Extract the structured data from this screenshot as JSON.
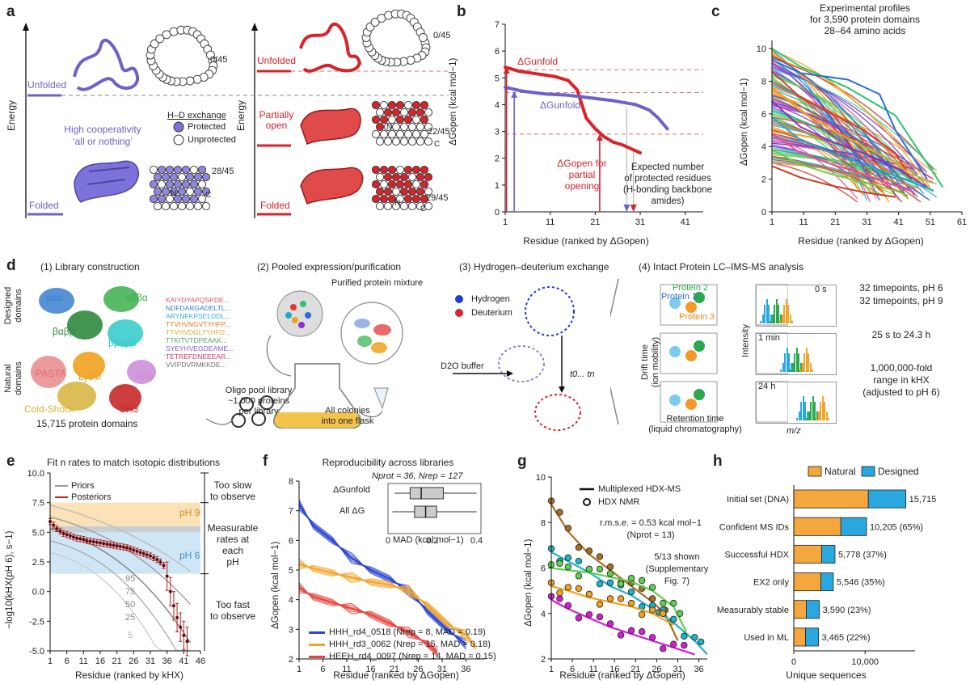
{
  "panel_labels": {
    "a": "a",
    "b": "b",
    "c": "c",
    "d": "d",
    "e": "e",
    "f": "f",
    "g": "g",
    "h": "h"
  },
  "panel_a": {
    "energy_left": "Energy",
    "energy_right": "Energy",
    "unfolded_left": "Unfolded",
    "folded_left": "Folded",
    "unfolded_right": "Unfolded",
    "partially_open": "Partially\nopen",
    "folded_right": "Folded",
    "count_unfolded_left": "0/45",
    "count_folded_left": "28/45",
    "count_unfolded_right": "0/45",
    "count_partial": "22/45",
    "count_folded_right": "29/45",
    "legend_title": "H–D exchange",
    "legend_protected": "Protected",
    "legend_unprotected": "Unprotected",
    "cooperativity": "High cooperativity\n‘all or nothing’",
    "letter_n": "N",
    "letter_c": "C",
    "colors": {
      "blue": "#6b63c9",
      "red": "#d9232a"
    }
  },
  "panel_b": {
    "dg_unfold_red": "ΔGunfold",
    "dg_unfold_blue": "ΔGunfold",
    "dg_open_partial": "ΔGopen for\npartial\nopening",
    "expected": "Expected number\nof protected residues\n(H-bonding backbone\namides)",
    "ylabel": "ΔGopen (kcal mol−1)",
    "xlabel": "Residue (ranked by ΔGopen)"
  },
  "panel_c": {
    "title": "Experimental profiles\nfor 3,590 protein domains\n28–64 amino acids",
    "ylabel": "ΔGopen (kcal mol−1)",
    "xlabel": "Residue (ranked by ΔGopen)"
  },
  "panel_d": {
    "step1": "(1) Library construction",
    "step2": "(2) Pooled expression/purification",
    "step3": "(3) Hydrogen–deuterium exchange",
    "step4": "(4) Intact Protein LC–IMS-MS analysis",
    "designed_domains": "Designed\ndomains",
    "natural_domains": "Natural\ndomains",
    "topologies": [
      "ααα",
      "αββα",
      "βαββ",
      "ββαββ",
      "PASTA",
      "LysM",
      "WW",
      "Cold-Shock",
      "SH3"
    ],
    "sequences": [
      "KAIYDYAPQSPDE...",
      "NDFDARGADELTL...",
      "ARYNFKPSELDDL...",
      "TTVHVNGVTYHFP...",
      "TTVHVDGLTYHFD...",
      "TTKITVTDPEAAK...",
      "SYEYHVEGDEAME...",
      "TETREFDNEEEAR...",
      "VVIPDVRMKKDE..."
    ],
    "sequence_colors": [
      "#e0596a",
      "#3a7ecf",
      "#3cb3d0",
      "#e07f2a",
      "#d6b23a",
      "#4ea86a",
      "#8a5fbf",
      "#c43b6e",
      "#6e6e6e"
    ],
    "domains_count": "15,715 protein domains",
    "oligo": "Oligo pool library\n~1,000 proteins\nper library",
    "colonies": "All colonies\ninto one flask",
    "purified": "Purified protein mixture",
    "hydrogen": "Hydrogen",
    "deuterium": "Deuterium",
    "d2o": "D2O buffer",
    "timepoints_label": "t0... tn",
    "drift": "Drift time\n(ion mobility)",
    "retention": "Retention time\n(liquid chromatography)",
    "protein1": "Protein 1",
    "protein2": "Protein 2",
    "protein3": "Protein 3",
    "intensity": "Intensity",
    "mz": "m/z",
    "time0": "0 s",
    "time1": "1 min",
    "time2": "24 h",
    "tp6": "32 timepoints, pH 6",
    "tp9": "32 timepoints, pH 9",
    "range_time": "25 s to 24.3 h",
    "fold": "1,000,000-fold\nrange in kHX\n(adjusted to pH 6)"
  },
  "panel_e": {
    "title": "Fit n rates to match isotopic distributions",
    "priors": "Priors",
    "posteriors": "Posteriors",
    "ph9": "pH 9",
    "ph6": "pH 6",
    "too_slow": "Too slow\nto observe",
    "measurable": "Measurable\nrates at each\npH",
    "too_fast": "Too fast\nto observe",
    "percentiles": [
      "95",
      "75",
      "50",
      "25",
      "5"
    ],
    "ylabel": "−log10(kHX(pH 6), s−1)",
    "xlabel": "Residue (ranked by kHX)"
  },
  "panel_f": {
    "title": "Reproducibility across libraries",
    "inset_n": "Nprot = 36, Nrep = 127",
    "inset_dg_unfold": "ΔGunfold",
    "inset_all": "All ΔG",
    "inset_xlabel": "MAD (kcal mol−1)",
    "legend": [
      {
        "label": "HHH_rd4_0518 (Nrep = 8, MAD = 0.19)",
        "color": "#2a46d6"
      },
      {
        "label": "HHH_rd3_0062 (Nrep = 15, MAD = 0.18)",
        "color": "#f3a52b"
      },
      {
        "label": "HEEH_rd4_0097 (Nrep = 14, MAD = 0.15)",
        "color": "#e8443f"
      }
    ],
    "ylabel": "ΔGopen (kcal mol−1)",
    "xlabel": "Residue (ranked by ΔGopen)"
  },
  "panel_g": {
    "legend_line": "Multiplexed HDX-MS",
    "legend_circle": "HDX NMR",
    "rmse": "r.m.s.e. = 0.53 kcal mol−1\n(Nprot = 13)",
    "shown": "5/13 shown\n(Supplementary\nFig. 7)",
    "ylabel": "ΔGopen (kcal mol−1)",
    "xlabel": "Residue (ranked by ΔGopen)"
  },
  "chart_data": [
    {
      "type": "line",
      "panel": "b",
      "xlabel": "Residue (ranked by ΔGopen)",
      "ylabel": "ΔGopen (kcal mol−1)",
      "xlim": [
        1,
        45
      ],
      "ylim": [
        0,
        7
      ],
      "xticks": [
        1,
        11,
        21,
        31,
        41
      ],
      "yticks": [
        0,
        1,
        2,
        3,
        4,
        5,
        6,
        7
      ],
      "series": [
        {
          "color": "#d9232a",
          "x": [
            1,
            4,
            8,
            12,
            15,
            17,
            19,
            21,
            23,
            25,
            27,
            29,
            31
          ],
          "y": [
            5.4,
            5.25,
            5.15,
            5.05,
            4.9,
            4.55,
            3.5,
            3.1,
            2.8,
            2.6,
            2.5,
            2.35,
            2.2
          ]
        },
        {
          "color": "#6b63c9",
          "x": [
            1,
            5,
            10,
            15,
            20,
            25,
            30,
            33,
            35,
            37
          ],
          "y": [
            4.65,
            4.5,
            4.4,
            4.35,
            4.25,
            4.15,
            4.0,
            3.8,
            3.5,
            3.1
          ]
        }
      ]
    },
    {
      "type": "line",
      "panel": "c",
      "xlabel": "Residue (ranked by ΔGopen)",
      "ylabel": "ΔGopen (kcal mol−1)",
      "xlim": [
        1,
        61
      ],
      "ylim": [
        0,
        10.5
      ],
      "xticks": [
        1,
        11,
        21,
        31,
        41,
        51,
        61
      ],
      "yticks": [
        0,
        2,
        4,
        6,
        8,
        10
      ],
      "series": [
        {
          "color": "#2ec46b",
          "x": [
            1,
            10,
            25,
            40,
            55
          ],
          "y": [
            10,
            8.9,
            7.6,
            5.9,
            1.5
          ]
        },
        {
          "color": "#2b6fd6",
          "x": [
            1,
            10,
            25,
            35,
            40,
            50
          ],
          "y": [
            9.3,
            8.5,
            8.1,
            7.2,
            5.0,
            2.0
          ]
        },
        {
          "color": "#e3342f",
          "x": [
            1,
            10,
            20,
            30,
            40,
            45
          ],
          "y": [
            8.6,
            7.0,
            6.0,
            5.0,
            3.6,
            2.0
          ]
        },
        {
          "color": "#f0a21f",
          "x": [
            1,
            10,
            20,
            30,
            40,
            48
          ],
          "y": [
            7.6,
            6.2,
            5.0,
            4.0,
            3.0,
            1.8
          ]
        },
        {
          "color": "#8b2fc9",
          "x": [
            1,
            10,
            20,
            30,
            40,
            50
          ],
          "y": [
            6.8,
            5.2,
            4.3,
            3.6,
            2.7,
            1.5
          ]
        },
        {
          "color": "#1fa9c9",
          "x": [
            1,
            10,
            20,
            30,
            40,
            52
          ],
          "y": [
            5.8,
            4.4,
            3.6,
            2.9,
            2.2,
            1.3
          ]
        },
        {
          "color": "#e8509a",
          "x": [
            1,
            10,
            20,
            30,
            40,
            46
          ],
          "y": [
            4.8,
            3.6,
            2.9,
            2.3,
            1.6,
            1.2
          ]
        },
        {
          "color": "#7ac93a",
          "x": [
            1,
            10,
            20,
            30,
            40,
            44
          ],
          "y": [
            3.8,
            2.9,
            2.3,
            1.8,
            1.3,
            1.0
          ]
        },
        {
          "color": "#c43b1e",
          "x": [
            1,
            10,
            20,
            30,
            40
          ],
          "y": [
            2.8,
            2.1,
            1.6,
            1.2,
            0.9
          ]
        }
      ]
    },
    {
      "type": "scatter",
      "panel": "e",
      "xlabel": "Residue (ranked by kHX)",
      "ylabel": "−log10(kHX(pH 6), s−1)",
      "xlim": [
        1,
        46
      ],
      "ylim": [
        -5,
        10
      ],
      "xticks": [
        1,
        6,
        11,
        16,
        21,
        26,
        31,
        36,
        41,
        46
      ],
      "yticks": [
        -5.0,
        -2.5,
        0.0,
        2.5,
        5.0,
        7.5,
        10.0
      ],
      "ph9_band": [
        5.0,
        7.5
      ],
      "ph6_band": [
        1.5,
        5.5
      ],
      "posteriors": {
        "x": [
          1,
          2,
          3,
          4,
          5,
          6,
          7,
          8,
          9,
          10,
          11,
          12,
          13,
          14,
          15,
          16,
          17,
          18,
          19,
          20,
          21,
          22,
          23,
          24,
          25,
          26,
          27,
          28,
          29,
          30,
          31,
          32,
          33,
          34,
          35,
          36,
          37,
          38,
          39,
          40,
          41,
          42
        ],
        "y": [
          5.9,
          5.6,
          5.3,
          5.1,
          4.9,
          4.8,
          4.7,
          4.6,
          4.5,
          4.45,
          4.4,
          4.3,
          4.25,
          4.2,
          4.15,
          4.1,
          4.05,
          4.0,
          3.95,
          3.9,
          3.85,
          3.8,
          3.75,
          3.7,
          3.6,
          3.5,
          3.4,
          3.3,
          3.2,
          3.1,
          3.0,
          2.85,
          2.7,
          2.5,
          2.2,
          1.3,
          0.0,
          -1.2,
          -2.2,
          -3.0,
          -3.7,
          -4.2
        ]
      },
      "priors_percentiles": [
        "95",
        "75",
        "50",
        "25",
        "5"
      ]
    },
    {
      "type": "line",
      "panel": "f",
      "xlabel": "Residue (ranked by ΔGopen)",
      "ylabel": "ΔGopen (kcal mol−1)",
      "xlim": [
        1,
        40
      ],
      "ylim": [
        2,
        8
      ],
      "xticks": [
        1,
        6,
        11,
        16,
        21,
        26,
        31,
        36
      ],
      "yticks": [
        2,
        3,
        4,
        5,
        6,
        7,
        8
      ],
      "series": [
        {
          "name": "HHH_rd4_0518 (Nrep = 8, MAD = 0.19)",
          "color": "#2a46d6",
          "x": [
            1,
            4,
            8,
            12,
            16,
            20,
            24,
            28,
            32,
            36
          ],
          "y": [
            7.2,
            6.5,
            6.0,
            5.4,
            5.0,
            4.7,
            4.3,
            3.6,
            3.0,
            2.5
          ]
        },
        {
          "name": "HHH_rd3_0062 (Nrep = 15, MAD = 0.18)",
          "color": "#f3a52b",
          "x": [
            1,
            4,
            8,
            12,
            16,
            20,
            24,
            28,
            32,
            36,
            38
          ],
          "y": [
            5.2,
            5.05,
            4.9,
            4.75,
            4.6,
            4.5,
            4.3,
            3.8,
            3.2,
            2.8,
            2.4
          ]
        },
        {
          "name": "HEEH_rd4_0097 (Nrep = 14, MAD = 0.15)",
          "color": "#e8443f",
          "x": [
            1,
            4,
            8,
            12,
            16,
            20,
            24,
            28,
            30
          ],
          "y": [
            4.4,
            4.1,
            3.9,
            3.7,
            3.5,
            3.2,
            2.9,
            2.5,
            2.2
          ]
        }
      ],
      "inset": {
        "xlabel": "MAD (kcal mol−1)",
        "xticks": [
          0,
          0.2,
          0.4
        ],
        "rows": [
          "ΔGunfold",
          "All ΔG"
        ]
      }
    },
    {
      "type": "line",
      "panel": "g",
      "xlabel": "Residue (ranked by ΔGopen)",
      "ylabel": "ΔGopen (kcal mol−1)",
      "xlim": [
        1,
        38
      ],
      "ylim": [
        2,
        10
      ],
      "xticks": [
        1,
        6,
        11,
        16,
        21,
        26,
        31,
        36
      ],
      "yticks": [
        2,
        4,
        6,
        8,
        10
      ],
      "series": [
        {
          "color": "#a5701f",
          "x": [
            1,
            5,
            10,
            15,
            20,
            25,
            28,
            31
          ],
          "y": [
            8.8,
            7.6,
            6.6,
            5.9,
            5.2,
            4.5,
            4.0,
            2.8
          ]
        },
        {
          "color": "#1fb2c9",
          "x": [
            1,
            5,
            10,
            15,
            20,
            25,
            30,
            35,
            38
          ],
          "y": [
            6.7,
            6.3,
            5.8,
            5.2,
            4.8,
            4.2,
            3.6,
            2.8,
            2.2
          ]
        },
        {
          "color": "#5fcf4f",
          "x": [
            1,
            5,
            10,
            15,
            20,
            25,
            30,
            33
          ],
          "y": [
            6.0,
            5.9,
            5.8,
            5.6,
            5.4,
            5.0,
            4.3,
            3.2
          ]
        },
        {
          "color": "#f0a21f",
          "x": [
            1,
            5,
            10,
            15,
            20,
            25,
            30
          ],
          "y": [
            5.2,
            5.0,
            4.7,
            4.5,
            4.3,
            4.0,
            3.5
          ]
        },
        {
          "color": "#d11fd1",
          "x": [
            1,
            5,
            10,
            15,
            20,
            25,
            30,
            35
          ],
          "y": [
            4.6,
            4.2,
            3.8,
            3.4,
            3.1,
            2.8,
            2.5,
            2.2
          ]
        }
      ],
      "rmse": "r.m.s.e. = 0.53 kcal mol−1"
    },
    {
      "type": "bar",
      "panel": "h",
      "xlabel": "Unique sequences",
      "xlim": [
        0,
        17000
      ],
      "xticks": [
        0,
        10000
      ],
      "tick_labels": [
        "0",
        "10,000"
      ],
      "categories": [
        "Initial set (DNA)",
        "Confident MS IDs",
        "Successful HDX",
        "EX2 only",
        "Measurably stable",
        "Used in ML"
      ],
      "series": [
        {
          "name": "Natural",
          "color": "#f3a73c",
          "values": [
            10450,
            6600,
            3900,
            3800,
            1750,
            1650
          ]
        },
        {
          "name": "Designed",
          "color": "#2aa7de",
          "values": [
            5265,
            3605,
            1878,
            1746,
            1840,
            1815
          ]
        }
      ],
      "totals": [
        "15,715",
        "10,205 (65%)",
        "5,778 (37%)",
        "5,546 (35%)",
        "3,590 (23%)",
        "3,465 (22%)"
      ]
    }
  ]
}
